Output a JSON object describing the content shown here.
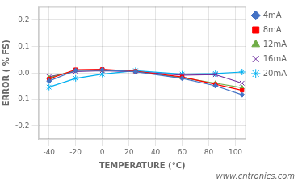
{
  "chart_data": {
    "type": "line",
    "xlabel": "TEMPERATURE (°C)",
    "ylabel": "ERROR ( % FS)",
    "annotation": "www.cntronics.com",
    "xlim": [
      -48,
      108
    ],
    "ylim": [
      -0.25,
      0.25
    ],
    "xticks": [
      -40,
      -20,
      0,
      20,
      40,
      60,
      80,
      100
    ],
    "yticks": [
      -0.2,
      -0.1,
      {
        "value": 0,
        "label": "0.0"
      },
      0.1,
      0.2
    ],
    "grid": true,
    "legend": "right",
    "x": [
      -40,
      -20,
      0,
      25,
      60,
      85,
      105
    ],
    "series": [
      {
        "name": "4mA",
        "color": "#4472C4",
        "marker": "diamond",
        "values": [
          -0.03,
          0.01,
          0.012,
          0.005,
          -0.02,
          -0.048,
          -0.082
        ]
      },
      {
        "name": "8mA",
        "color": "#FF0000",
        "marker": "square",
        "values": [
          -0.022,
          0.013,
          0.014,
          0.007,
          -0.015,
          -0.042,
          -0.065
        ]
      },
      {
        "name": "12mA",
        "color": "#70AD47",
        "marker": "triangle",
        "values": [
          -0.018,
          0.01,
          0.012,
          0.007,
          -0.018,
          -0.038,
          -0.055
        ]
      },
      {
        "name": "16mA",
        "color": "#7030A0",
        "marker": "x",
        "values": [
          -0.014,
          0.006,
          0.009,
          0.005,
          -0.008,
          -0.006,
          -0.038
        ]
      },
      {
        "name": "20mA",
        "color": "#00B0F0",
        "marker": "star",
        "values": [
          -0.053,
          -0.02,
          -0.004,
          0.009,
          -0.004,
          -0.002,
          0.004
        ]
      }
    ]
  }
}
